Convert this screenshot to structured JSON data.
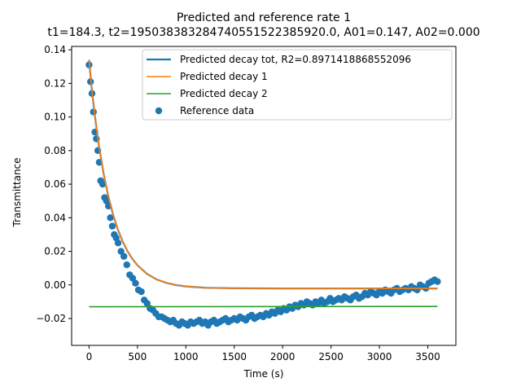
{
  "chart_data": {
    "type": "scatter",
    "title": "Predicted and reference rate 1",
    "subtitle": "t1=184.3, t2=195038383284740551522385920.0, A01=0.147, A02=0.000",
    "xlabel": "Time (s)",
    "ylabel": "Transmittance",
    "xlim": [
      -180,
      3790
    ],
    "ylim": [
      -0.036,
      0.142
    ],
    "xticks": [
      0,
      500,
      1000,
      1500,
      2000,
      2500,
      3000,
      3500
    ],
    "yticks": [
      -0.02,
      0.0,
      0.02,
      0.04,
      0.06,
      0.08,
      0.1,
      0.12,
      0.14
    ],
    "ytick_labels": [
      "−0.02",
      "0.00",
      "0.02",
      "0.04",
      "0.06",
      "0.08",
      "0.10",
      "0.12",
      "0.14"
    ],
    "legend_position": "top-right",
    "grid": false,
    "series": [
      {
        "name": "Predicted decay tot, R2=0.8971418868552096",
        "kind": "line",
        "color": "#1f77b4",
        "x": [
          0,
          30,
          60,
          100,
          150,
          200,
          250,
          300,
          350,
          400,
          450,
          500,
          600,
          700,
          800,
          900,
          1000,
          1200,
          1500,
          2000,
          2500,
          3000,
          3600
        ],
        "y": [
          0.134,
          0.1155,
          0.1007,
          0.0836,
          0.0663,
          0.0525,
          0.0414,
          0.0326,
          0.0255,
          0.0198,
          0.0153,
          0.0117,
          0.0065,
          0.0032,
          0.0012,
          -0.0001,
          -0.0009,
          -0.0017,
          -0.002,
          -0.0021,
          -0.0021,
          -0.0021,
          -0.0021
        ]
      },
      {
        "name": "Predicted decay 1",
        "kind": "line",
        "color": "#ff7f0e",
        "x": [
          0,
          30,
          60,
          100,
          150,
          200,
          250,
          300,
          350,
          400,
          450,
          500,
          600,
          700,
          800,
          900,
          1000,
          1200,
          1500,
          2000,
          2500,
          3000,
          3600
        ],
        "y": [
          0.134,
          0.1155,
          0.1007,
          0.0836,
          0.0663,
          0.0525,
          0.0414,
          0.0326,
          0.0255,
          0.0198,
          0.0153,
          0.0117,
          0.0065,
          0.0032,
          0.0012,
          -0.0001,
          -0.0009,
          -0.0017,
          -0.002,
          -0.0021,
          -0.0021,
          -0.0021,
          -0.0021
        ]
      },
      {
        "name": "Predicted decay 2",
        "kind": "line",
        "color": "#2ca02c",
        "x": [
          0,
          3600
        ],
        "y": [
          -0.013,
          -0.0128
        ]
      },
      {
        "name": "Reference data",
        "kind": "scatter",
        "color": "#1f77b4",
        "x": [
          0,
          15,
          30,
          45,
          60,
          75,
          90,
          105,
          120,
          140,
          160,
          180,
          200,
          220,
          240,
          260,
          280,
          300,
          330,
          360,
          390,
          420,
          450,
          480,
          510,
          540,
          570,
          600,
          630,
          660,
          690,
          720,
          750,
          780,
          810,
          840,
          870,
          900,
          930,
          960,
          990,
          1020,
          1050,
          1080,
          1110,
          1140,
          1170,
          1200,
          1230,
          1260,
          1290,
          1320,
          1350,
          1380,
          1410,
          1440,
          1470,
          1500,
          1530,
          1560,
          1590,
          1620,
          1650,
          1680,
          1710,
          1740,
          1770,
          1800,
          1830,
          1860,
          1890,
          1920,
          1950,
          1980,
          2010,
          2040,
          2070,
          2100,
          2130,
          2160,
          2190,
          2220,
          2250,
          2280,
          2310,
          2340,
          2370,
          2400,
          2430,
          2460,
          2490,
          2520,
          2550,
          2580,
          2610,
          2640,
          2670,
          2700,
          2730,
          2760,
          2790,
          2820,
          2850,
          2880,
          2910,
          2940,
          2970,
          3000,
          3030,
          3060,
          3090,
          3120,
          3150,
          3180,
          3210,
          3240,
          3270,
          3300,
          3330,
          3360,
          3390,
          3420,
          3450,
          3480,
          3510,
          3540,
          3570,
          3600
        ],
        "y": [
          0.131,
          0.121,
          0.114,
          0.103,
          0.091,
          0.087,
          0.08,
          0.073,
          0.062,
          0.06,
          0.052,
          0.05,
          0.047,
          0.04,
          0.035,
          0.03,
          0.028,
          0.025,
          0.02,
          0.017,
          0.012,
          0.006,
          0.004,
          0.001,
          -0.003,
          -0.004,
          -0.009,
          -0.011,
          -0.014,
          -0.015,
          -0.017,
          -0.019,
          -0.019,
          -0.02,
          -0.021,
          -0.022,
          -0.021,
          -0.023,
          -0.024,
          -0.022,
          -0.023,
          -0.024,
          -0.022,
          -0.023,
          -0.022,
          -0.021,
          -0.023,
          -0.022,
          -0.024,
          -0.022,
          -0.021,
          -0.023,
          -0.022,
          -0.021,
          -0.02,
          -0.022,
          -0.021,
          -0.02,
          -0.021,
          -0.019,
          -0.02,
          -0.021,
          -0.019,
          -0.018,
          -0.02,
          -0.019,
          -0.018,
          -0.019,
          -0.017,
          -0.018,
          -0.016,
          -0.017,
          -0.015,
          -0.016,
          -0.014,
          -0.015,
          -0.013,
          -0.014,
          -0.012,
          -0.013,
          -0.011,
          -0.012,
          -0.01,
          -0.011,
          -0.012,
          -0.01,
          -0.011,
          -0.009,
          -0.011,
          -0.01,
          -0.008,
          -0.01,
          -0.009,
          -0.008,
          -0.009,
          -0.007,
          -0.008,
          -0.009,
          -0.007,
          -0.006,
          -0.008,
          -0.007,
          -0.005,
          -0.006,
          -0.004,
          -0.005,
          -0.006,
          -0.004,
          -0.005,
          -0.003,
          -0.004,
          -0.005,
          -0.003,
          -0.002,
          -0.004,
          -0.003,
          -0.002,
          -0.003,
          -0.001,
          -0.002,
          -0.003,
          0.0,
          -0.001,
          -0.002,
          0.001,
          0.002,
          0.003,
          0.002
        ]
      }
    ]
  }
}
